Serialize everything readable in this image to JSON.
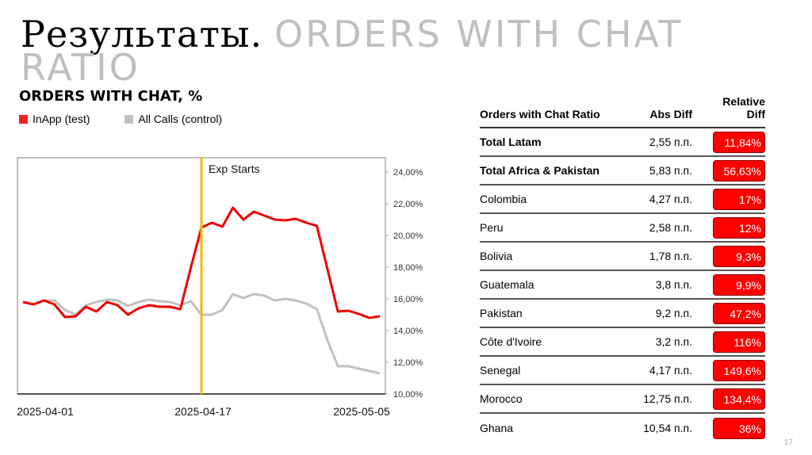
{
  "slide": {
    "title_ru": "Результаты.",
    "title_en": "ORDERS WITH CHAT RATIO",
    "page_number": "17"
  },
  "chart_data": {
    "type": "line",
    "title": "ORDERS WITH CHAT, %",
    "xlabel": "",
    "ylabel": "",
    "x_tick_labels": [
      "2025-04-01",
      "2025-04-17",
      "2025-05-05"
    ],
    "y_tick_labels": [
      "10,00%",
      "12,00%",
      "14,00%",
      "16,00%",
      "18,00%",
      "20,00%",
      "22,00%",
      "24,00%"
    ],
    "ylim": [
      10,
      24
    ],
    "y_axis_position": "right",
    "grid": false,
    "legend_position": "top-left",
    "annotation": {
      "label": "Exp Starts",
      "x_index": 17,
      "color": "#f5b800"
    },
    "x_count": 35,
    "series": [
      {
        "name": "InApp (test)",
        "color": "#ee0000",
        "values": [
          15.8,
          15.65,
          15.9,
          15.65,
          14.85,
          14.9,
          15.5,
          15.2,
          15.8,
          15.6,
          15.0,
          15.4,
          15.6,
          15.5,
          15.5,
          15.35,
          18.0,
          20.5,
          20.8,
          20.55,
          21.75,
          21.0,
          21.5,
          21.25,
          21.0,
          20.95,
          21.05,
          20.8,
          20.6,
          17.9,
          15.2,
          15.25,
          15.05,
          14.8,
          14.9
        ]
      },
      {
        "name": "All Calls (control)",
        "color": "#c0c0c0",
        "values": [
          15.8,
          15.65,
          15.9,
          15.9,
          15.3,
          15.0,
          15.6,
          15.8,
          15.95,
          15.9,
          15.55,
          15.8,
          15.95,
          15.85,
          15.8,
          15.6,
          15.85,
          15.0,
          15.0,
          15.3,
          16.3,
          16.05,
          16.3,
          16.2,
          15.9,
          16.0,
          15.9,
          15.7,
          15.35,
          13.4,
          11.75,
          11.75,
          11.6,
          11.45,
          11.3
        ]
      }
    ]
  },
  "table": {
    "headers": {
      "name": "Orders with Chat Ratio",
      "abs": "Abs Diff",
      "rel": "Relative Diff"
    },
    "rows": [
      {
        "name": "Total Latam",
        "abs": "2,55 п.п.",
        "rel": "11,84%",
        "bold": true
      },
      {
        "name": "Total Africa & Pakistan",
        "abs": "5,83 п.п.",
        "rel": "56,63%",
        "bold": true
      },
      {
        "name": "Colombia",
        "abs": "4,27 п.п.",
        "rel": "17%"
      },
      {
        "name": "Peru",
        "abs": "2,58 п.п.",
        "rel": "12%"
      },
      {
        "name": "Bolivia",
        "abs": "1,78 п.п.",
        "rel": "9,3%"
      },
      {
        "name": "Guatemala",
        "abs": "3,8 п.п.",
        "rel": "9,9%"
      },
      {
        "name": "Pakistan",
        "abs": "9,2 п.п.",
        "rel": "47,2%"
      },
      {
        "name": "Côte d'Ivoire",
        "abs": "3,2 п.п.",
        "rel": "116%"
      },
      {
        "name": "Senegal",
        "abs": "4,17 п.п.",
        "rel": "149,6%"
      },
      {
        "name": "Morocco",
        "abs": "12,75 п.п.",
        "rel": "134,4%"
      },
      {
        "name": "Ghana",
        "abs": "10,54 п.п.",
        "rel": "36%"
      }
    ],
    "badge_color": "#ff0000"
  }
}
